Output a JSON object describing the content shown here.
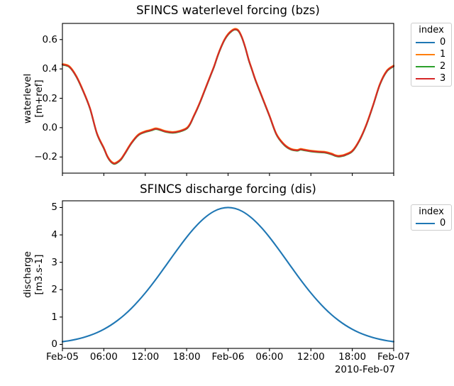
{
  "colors": {
    "background": "#ffffff",
    "axes": "#000000",
    "text": "#000000",
    "legend_border": "#cccccc",
    "series_blue": "#1f77b4",
    "series_orange": "#ff7f0e",
    "series_green": "#2ca02c",
    "series_red": "#d62728"
  },
  "figure": {
    "xaxis": {
      "tick_hours": [
        0,
        6,
        12,
        18,
        24,
        30,
        36,
        42,
        48
      ],
      "tick_labels": [
        "Feb-05",
        "06:00",
        "12:00",
        "18:00",
        "Feb-06",
        "06:00",
        "12:00",
        "18:00",
        "Feb-07"
      ],
      "offset_label": "2010-Feb-07"
    }
  },
  "chart_data": [
    {
      "type": "line",
      "title": "SFINCS waterlevel forcing (bzs)",
      "ylabel": [
        "waterlevel",
        "[m+ref]"
      ],
      "xlim": [
        0,
        48
      ],
      "ylim": [
        -0.31,
        0.71
      ],
      "yticks": [
        0.6,
        0.4,
        0.2,
        0.0,
        -0.2
      ],
      "ytick_labels": [
        "0.6",
        "0.4",
        "0.2",
        "0.0",
        "−0.2"
      ],
      "grid": false,
      "legend": {
        "title": "index",
        "position": "outside-upper-right",
        "entries": [
          {
            "label": "0",
            "color": "#1f77b4"
          },
          {
            "label": "1",
            "color": "#ff7f0e"
          },
          {
            "label": "2",
            "color": "#2ca02c"
          },
          {
            "label": "3",
            "color": "#d62728"
          }
        ]
      },
      "note_series_overlap": "all four index lines are nearly identical and overlap",
      "x_hours": [
        0,
        1,
        2,
        3,
        4,
        5,
        6,
        6.5,
        7,
        7.5,
        8,
        8.5,
        9,
        10,
        11,
        12,
        12.5,
        13,
        13.5,
        14,
        14.5,
        15,
        16,
        17,
        18,
        18.5,
        19,
        19.5,
        20,
        20.5,
        21,
        21.5,
        22,
        22.5,
        23,
        23.5,
        24,
        24.5,
        25,
        25.5,
        26,
        26.5,
        27,
        27.5,
        28,
        29,
        30,
        31,
        32,
        33,
        34,
        34.5,
        35,
        36,
        37,
        38,
        39,
        39.5,
        40,
        40.5,
        41,
        42,
        43,
        44,
        45,
        46,
        47,
        48
      ],
      "values": [
        0.43,
        0.415,
        0.35,
        0.25,
        0.13,
        -0.04,
        -0.14,
        -0.195,
        -0.23,
        -0.245,
        -0.235,
        -0.215,
        -0.18,
        -0.105,
        -0.05,
        -0.028,
        -0.022,
        -0.015,
        -0.008,
        -0.012,
        -0.02,
        -0.027,
        -0.033,
        -0.025,
        -0.005,
        0.025,
        0.075,
        0.125,
        0.18,
        0.24,
        0.3,
        0.36,
        0.42,
        0.49,
        0.55,
        0.6,
        0.635,
        0.658,
        0.67,
        0.66,
        0.615,
        0.545,
        0.46,
        0.39,
        0.32,
        0.2,
        0.08,
        -0.045,
        -0.11,
        -0.145,
        -0.155,
        -0.148,
        -0.152,
        -0.16,
        -0.165,
        -0.168,
        -0.18,
        -0.19,
        -0.195,
        -0.192,
        -0.185,
        -0.16,
        -0.09,
        0.015,
        0.15,
        0.295,
        0.385,
        0.42
      ]
    },
    {
      "type": "line",
      "title": "SFINCS discharge forcing (dis)",
      "ylabel": [
        "discharge",
        "[m3.s-1]"
      ],
      "xlim": [
        0,
        48
      ],
      "ylim": [
        -0.145,
        5.245
      ],
      "yticks": [
        5,
        4,
        3,
        2,
        1,
        0
      ],
      "ytick_labels": [
        "5",
        "4",
        "3",
        "2",
        "1",
        "0"
      ],
      "grid": false,
      "legend": {
        "title": "index",
        "position": "outside-upper-right",
        "entries": [
          {
            "label": "0",
            "color": "#1f77b4"
          }
        ]
      },
      "x_hours": [
        0,
        1,
        2,
        3,
        4,
        5,
        6,
        7,
        8,
        9,
        10,
        11,
        12,
        13,
        14,
        15,
        16,
        17,
        18,
        19,
        20,
        21,
        22,
        23,
        24,
        25,
        26,
        27,
        28,
        29,
        30,
        31,
        32,
        33,
        34,
        35,
        36,
        37,
        38,
        39,
        40,
        41,
        42,
        43,
        44,
        45,
        46,
        47,
        48
      ],
      "values": [
        0.1,
        0.137,
        0.187,
        0.25,
        0.33,
        0.43,
        0.554,
        0.702,
        0.879,
        1.083,
        1.32,
        1.587,
        1.88,
        2.198,
        2.535,
        2.884,
        3.238,
        3.584,
        3.915,
        4.219,
        4.485,
        4.703,
        4.866,
        4.966,
        5.0,
        4.966,
        4.866,
        4.703,
        4.485,
        4.219,
        3.915,
        3.584,
        3.238,
        2.884,
        2.535,
        2.198,
        1.88,
        1.587,
        1.32,
        1.083,
        0.879,
        0.702,
        0.554,
        0.43,
        0.33,
        0.25,
        0.187,
        0.137,
        0.1
      ]
    }
  ]
}
